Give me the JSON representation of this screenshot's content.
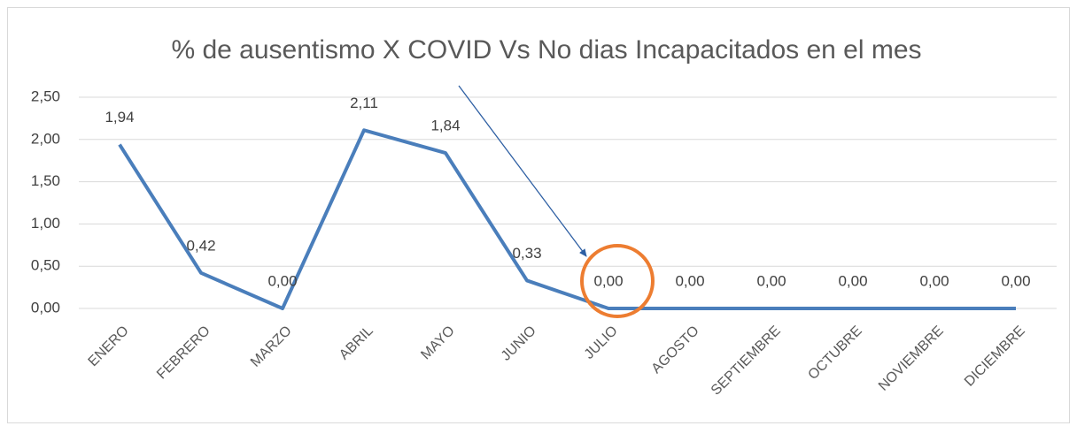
{
  "chart_data": {
    "type": "line",
    "title": "% de ausentismo X COVID Vs No dias Incapacitados en el mes",
    "categories": [
      "ENERO",
      "FEBRERO",
      "MARZO",
      "ABRIL",
      "MAYO",
      "JUNIO",
      "JULIO",
      "AGOSTO",
      "SEPTIEMBRE",
      "OCTUBRE",
      "NOVIEMBRE",
      "DICIEMBRE"
    ],
    "values": [
      1.94,
      0.42,
      0,
      2.11,
      1.84,
      0.33,
      0,
      0,
      0,
      0,
      0,
      0
    ],
    "value_labels": [
      "1,94",
      "0,42",
      "0,00",
      "2,11",
      "1,84",
      "0,33",
      "0,00",
      "0,00",
      "0,00",
      "0,00",
      "0,00",
      "0,00"
    ],
    "color": "#4a7ebb",
    "ylim": [
      0,
      2.5
    ],
    "yticks": [
      {
        "value": 0,
        "label": "0,00"
      },
      {
        "value": 0.5,
        "label": "0,50"
      },
      {
        "value": 1,
        "label": "1,00"
      },
      {
        "value": 1.5,
        "label": "1,50"
      },
      {
        "value": 2,
        "label": "2,00"
      },
      {
        "value": 2.5,
        "label": "2,50"
      }
    ],
    "grid": true
  }
}
